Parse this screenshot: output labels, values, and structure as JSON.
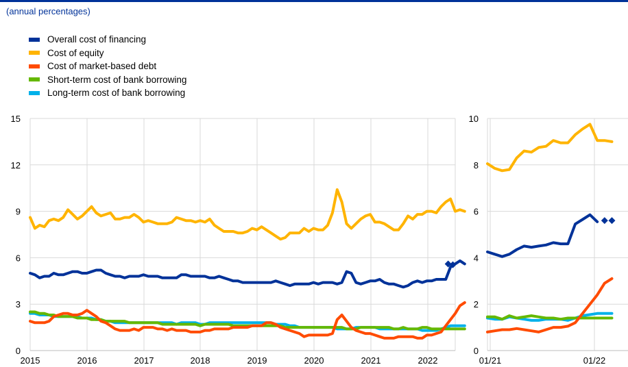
{
  "subtitle": "(annual percentages)",
  "legend": [
    {
      "label": "Overall cost of financing",
      "color": "#003299"
    },
    {
      "label": "Cost of equity",
      "color": "#FFB400"
    },
    {
      "label": "Cost of market-based debt",
      "color": "#FF4B00"
    },
    {
      "label": "Short-term cost of bank borrowing",
      "color": "#65B800"
    },
    {
      "label": "Long-term cost of bank borrowing",
      "color": "#00B1EA"
    }
  ],
  "chart_data": [
    {
      "type": "line",
      "xlabel": "",
      "ylabel": "",
      "x_ticks": [
        "2015",
        "2016",
        "2017",
        "2018",
        "2019",
        "2020",
        "2021",
        "2022"
      ],
      "y_ticks": [
        "0",
        "3",
        "6",
        "9",
        "12",
        "15"
      ],
      "ylim": [
        0,
        15
      ],
      "xlim": [
        2015.0,
        2022.5
      ],
      "grid": true,
      "markers": {
        "series": "Overall cost of financing",
        "points": [
          [
            2022.375,
            5.6
          ],
          [
            2022.458,
            5.55
          ]
        ]
      },
      "series": [
        {
          "name": "Overall cost of financing",
          "color": "#003299",
          "x_start": 2015.0,
          "step": 0.08333,
          "values": [
            5.0,
            4.9,
            4.7,
            4.8,
            4.8,
            5.0,
            4.9,
            4.9,
            5.0,
            5.1,
            5.1,
            5.0,
            5.0,
            5.1,
            5.2,
            5.2,
            5.0,
            4.9,
            4.8,
            4.8,
            4.7,
            4.8,
            4.8,
            4.8,
            4.9,
            4.8,
            4.8,
            4.8,
            4.7,
            4.7,
            4.7,
            4.7,
            4.9,
            4.9,
            4.8,
            4.8,
            4.8,
            4.8,
            4.7,
            4.7,
            4.8,
            4.7,
            4.6,
            4.5,
            4.5,
            4.4,
            4.4,
            4.4,
            4.4,
            4.4,
            4.4,
            4.4,
            4.5,
            4.4,
            4.3,
            4.2,
            4.3,
            4.3,
            4.3,
            4.3,
            4.4,
            4.3,
            4.4,
            4.4,
            4.4,
            4.3,
            4.4,
            5.1,
            5.0,
            4.4,
            4.3,
            4.4,
            4.5,
            4.5,
            4.6,
            4.4,
            4.3,
            4.3,
            4.2,
            4.1,
            4.2,
            4.4,
            4.5,
            4.4,
            4.5,
            4.5,
            4.6,
            4.6,
            4.6,
            5.4,
            5.6,
            5.8,
            5.6
          ]
        },
        {
          "name": "Cost of equity",
          "color": "#FFB400",
          "x_start": 2015.0,
          "step": 0.08333,
          "values": [
            8.6,
            7.9,
            8.1,
            8.0,
            8.4,
            8.5,
            8.4,
            8.6,
            9.1,
            8.8,
            8.5,
            8.7,
            9.0,
            9.3,
            8.9,
            8.7,
            8.8,
            8.9,
            8.5,
            8.5,
            8.6,
            8.6,
            8.8,
            8.6,
            8.3,
            8.4,
            8.3,
            8.2,
            8.2,
            8.2,
            8.3,
            8.6,
            8.5,
            8.4,
            8.4,
            8.3,
            8.4,
            8.3,
            8.5,
            8.1,
            7.9,
            7.7,
            7.7,
            7.7,
            7.6,
            7.6,
            7.7,
            7.9,
            7.8,
            8.0,
            7.8,
            7.6,
            7.4,
            7.2,
            7.3,
            7.6,
            7.6,
            7.6,
            7.9,
            7.7,
            7.9,
            7.8,
            7.8,
            8.1,
            8.9,
            10.4,
            9.6,
            8.2,
            7.9,
            8.2,
            8.5,
            8.7,
            8.8,
            8.3,
            8.3,
            8.2,
            8.0,
            7.8,
            7.8,
            8.2,
            8.7,
            8.5,
            8.8,
            8.8,
            9.0,
            9.0,
            8.9,
            9.3,
            9.6,
            9.8,
            9.0,
            9.1,
            9.0
          ]
        },
        {
          "name": "Cost of market-based debt",
          "color": "#FF4B00",
          "x_start": 2015.0,
          "step": 0.08333,
          "values": [
            1.9,
            1.8,
            1.8,
            1.8,
            1.9,
            2.2,
            2.3,
            2.4,
            2.4,
            2.3,
            2.3,
            2.4,
            2.6,
            2.4,
            2.2,
            1.9,
            1.8,
            1.6,
            1.4,
            1.3,
            1.3,
            1.3,
            1.4,
            1.3,
            1.5,
            1.5,
            1.5,
            1.4,
            1.4,
            1.3,
            1.4,
            1.3,
            1.3,
            1.3,
            1.2,
            1.2,
            1.2,
            1.3,
            1.3,
            1.4,
            1.4,
            1.4,
            1.4,
            1.5,
            1.5,
            1.5,
            1.5,
            1.6,
            1.6,
            1.6,
            1.8,
            1.8,
            1.7,
            1.5,
            1.4,
            1.3,
            1.2,
            1.1,
            0.9,
            1.0,
            1.0,
            1.0,
            1.0,
            1.0,
            1.1,
            2.0,
            2.3,
            1.9,
            1.5,
            1.3,
            1.2,
            1.1,
            1.1,
            1.0,
            0.9,
            0.8,
            0.8,
            0.8,
            0.9,
            0.9,
            0.9,
            0.9,
            0.8,
            0.8,
            1.0,
            1.0,
            1.1,
            1.2,
            1.6,
            2.0,
            2.4,
            2.9,
            3.1
          ]
        },
        {
          "name": "Short-term cost of bank borrowing",
          "color": "#65B800",
          "x_start": 2015.0,
          "step": 0.08333,
          "values": [
            2.5,
            2.5,
            2.4,
            2.4,
            2.3,
            2.3,
            2.2,
            2.2,
            2.2,
            2.2,
            2.1,
            2.1,
            2.1,
            2.0,
            2.0,
            2.0,
            1.9,
            1.9,
            1.9,
            1.9,
            1.9,
            1.8,
            1.8,
            1.8,
            1.8,
            1.8,
            1.8,
            1.8,
            1.7,
            1.7,
            1.7,
            1.7,
            1.7,
            1.7,
            1.7,
            1.7,
            1.6,
            1.7,
            1.7,
            1.7,
            1.7,
            1.7,
            1.7,
            1.6,
            1.6,
            1.6,
            1.6,
            1.6,
            1.6,
            1.6,
            1.6,
            1.6,
            1.6,
            1.6,
            1.5,
            1.5,
            1.5,
            1.5,
            1.5,
            1.5,
            1.5,
            1.5,
            1.5,
            1.5,
            1.5,
            1.5,
            1.5,
            1.4,
            1.4,
            1.4,
            1.5,
            1.5,
            1.5,
            1.5,
            1.5,
            1.5,
            1.5,
            1.4,
            1.4,
            1.5,
            1.4,
            1.4,
            1.4,
            1.5,
            1.5,
            1.4,
            1.4,
            1.4,
            1.4,
            1.4,
            1.4,
            1.4,
            1.4
          ]
        },
        {
          "name": "Long-term cost of bank borrowing",
          "color": "#00B1EA",
          "x_start": 2015.0,
          "step": 0.08333,
          "values": [
            2.4,
            2.4,
            2.3,
            2.3,
            2.3,
            2.2,
            2.2,
            2.2,
            2.2,
            2.2,
            2.2,
            2.1,
            2.1,
            2.1,
            2.0,
            2.0,
            1.9,
            1.9,
            1.8,
            1.8,
            1.8,
            1.8,
            1.8,
            1.8,
            1.8,
            1.8,
            1.8,
            1.8,
            1.8,
            1.8,
            1.8,
            1.7,
            1.8,
            1.8,
            1.8,
            1.8,
            1.7,
            1.7,
            1.8,
            1.8,
            1.8,
            1.8,
            1.8,
            1.8,
            1.8,
            1.8,
            1.8,
            1.8,
            1.8,
            1.8,
            1.8,
            1.8,
            1.7,
            1.7,
            1.7,
            1.6,
            1.6,
            1.5,
            1.5,
            1.5,
            1.5,
            1.5,
            1.5,
            1.5,
            1.5,
            1.4,
            1.4,
            1.4,
            1.4,
            1.5,
            1.5,
            1.5,
            1.5,
            1.5,
            1.4,
            1.4,
            1.4,
            1.4,
            1.4,
            1.4,
            1.4,
            1.4,
            1.4,
            1.3,
            1.3,
            1.3,
            1.3,
            1.4,
            1.5,
            1.6,
            1.6,
            1.6,
            1.6
          ]
        }
      ]
    },
    {
      "type": "line",
      "xlabel": "",
      "ylabel": "",
      "x_ticks": [
        "01/21",
        "01/22"
      ],
      "y_ticks": [
        "0",
        "2",
        "4",
        "6",
        "8",
        "10"
      ],
      "ylim": [
        0,
        10
      ],
      "xlim": [
        0,
        19.2
      ],
      "grid": true,
      "markers": {
        "series": "Overall cost of financing",
        "points": [
          [
            16,
            5.6
          ],
          [
            17,
            5.6
          ]
        ]
      },
      "series": [
        {
          "name": "Overall cost of financing",
          "color": "#003299",
          "x_start": 0,
          "step": 1,
          "values": [
            4.25,
            4.15,
            4.05,
            4.15,
            4.35,
            4.5,
            4.45,
            4.5,
            4.55,
            4.65,
            4.6,
            4.6,
            5.45,
            5.65,
            5.85,
            5.55
          ]
        },
        {
          "name": "Cost of equity",
          "color": "#FFB400",
          "x_start": 0,
          "step": 1,
          "values": [
            8.05,
            7.85,
            7.75,
            7.8,
            8.3,
            8.6,
            8.55,
            8.75,
            8.8,
            9.05,
            8.95,
            8.95,
            9.3,
            9.55,
            9.75,
            9.05,
            9.05,
            9.0
          ]
        },
        {
          "name": "Cost of market-based debt",
          "color": "#FF4B00",
          "x_start": 0,
          "step": 1,
          "values": [
            0.8,
            0.85,
            0.9,
            0.9,
            0.95,
            0.9,
            0.85,
            0.8,
            0.9,
            1.0,
            1.0,
            1.05,
            1.2,
            1.6,
            2.0,
            2.4,
            2.9,
            3.1
          ]
        },
        {
          "name": "Short-term cost of bank borrowing",
          "color": "#65B800",
          "x_start": 0,
          "step": 1,
          "values": [
            1.45,
            1.45,
            1.35,
            1.5,
            1.4,
            1.45,
            1.5,
            1.45,
            1.4,
            1.4,
            1.35,
            1.4,
            1.4,
            1.4,
            1.4,
            1.4,
            1.4,
            1.4
          ]
        },
        {
          "name": "Long-term cost of bank borrowing",
          "color": "#00B1EA",
          "x_start": 0,
          "step": 1,
          "values": [
            1.4,
            1.35,
            1.35,
            1.45,
            1.4,
            1.35,
            1.3,
            1.3,
            1.35,
            1.35,
            1.35,
            1.3,
            1.4,
            1.5,
            1.55,
            1.6,
            1.6,
            1.6
          ]
        }
      ]
    }
  ]
}
